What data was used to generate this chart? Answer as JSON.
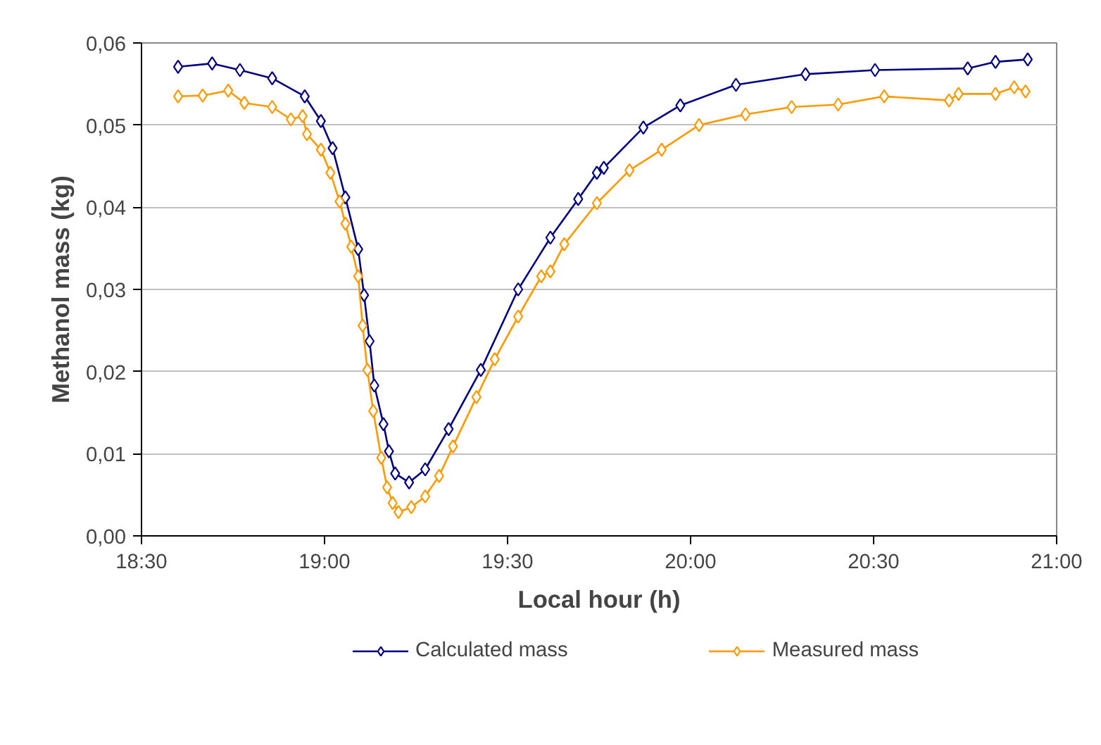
{
  "chart_data": {
    "type": "line",
    "xlabel": "Local hour (h)",
    "ylabel": "Methanol mass (kg)",
    "xlim": [
      18.5,
      21
    ],
    "xticks": [
      {
        "value": 18.5,
        "label": "18:30"
      },
      {
        "value": 19,
        "label": "19:00"
      },
      {
        "value": 19.5,
        "label": "19:30"
      },
      {
        "value": 20,
        "label": "20:00"
      },
      {
        "value": 20.5,
        "label": "20:30"
      },
      {
        "value": 21,
        "label": "21:00"
      }
    ],
    "ylim": [
      0,
      0.06
    ],
    "yticks": [
      {
        "value": 0,
        "label": "0,00"
      },
      {
        "value": 0.01,
        "label": "0,01"
      },
      {
        "value": 0.02,
        "label": "0,02"
      },
      {
        "value": 0.03,
        "label": "0,03"
      },
      {
        "value": 0.04,
        "label": "0,04"
      },
      {
        "value": 0.05,
        "label": "0,05"
      },
      {
        "value": 0.06,
        "label": "0,06"
      }
    ],
    "grid": "y",
    "legend": "bottom",
    "marker": "diamond",
    "line_style": "solid",
    "series": [
      {
        "name": "Calculated mass",
        "color": "#000080",
        "x": [
          18.6,
          18.693,
          18.769,
          18.857,
          18.946,
          18.99,
          19.022,
          19.057,
          19.092,
          19.108,
          19.123,
          19.136,
          19.161,
          19.176,
          19.193,
          19.231,
          19.275,
          19.339,
          19.427,
          19.529,
          19.617,
          19.693,
          19.744,
          19.763,
          19.871,
          19.972,
          20.124,
          20.314,
          20.504,
          20.757,
          20.833,
          20.921
        ],
        "values": [
          0.0571,
          0.0575,
          0.0567,
          0.0557,
          0.0535,
          0.0505,
          0.0472,
          0.0412,
          0.0349,
          0.0293,
          0.0237,
          0.0183,
          0.0136,
          0.0103,
          0.0076,
          0.0065,
          0.0081,
          0.013,
          0.0202,
          0.03,
          0.0363,
          0.041,
          0.0442,
          0.0448,
          0.0497,
          0.0524,
          0.0549,
          0.0562,
          0.0567,
          0.0569,
          0.0577,
          0.058
        ]
      },
      {
        "name": "Measured mass",
        "color": "#ff9900",
        "x": [
          18.6,
          18.667,
          18.737,
          18.781,
          18.857,
          18.908,
          18.94,
          18.952,
          18.99,
          19.016,
          19.041,
          19.057,
          19.073,
          19.092,
          19.104,
          19.117,
          19.133,
          19.155,
          19.171,
          19.186,
          19.202,
          19.237,
          19.275,
          19.313,
          19.351,
          19.415,
          19.465,
          19.529,
          19.592,
          19.617,
          19.655,
          19.744,
          19.833,
          19.921,
          20.023,
          20.15,
          20.276,
          20.403,
          20.529,
          20.706,
          20.732,
          20.833,
          20.884,
          20.915
        ],
        "values": [
          0.0535,
          0.0536,
          0.0542,
          0.0527,
          0.0522,
          0.0507,
          0.0511,
          0.0489,
          0.047,
          0.0442,
          0.0407,
          0.038,
          0.0352,
          0.0316,
          0.0256,
          0.0202,
          0.0152,
          0.0095,
          0.0059,
          0.004,
          0.0029,
          0.0035,
          0.0048,
          0.0073,
          0.0109,
          0.0169,
          0.0215,
          0.0267,
          0.0316,
          0.0322,
          0.0355,
          0.0405,
          0.0445,
          0.047,
          0.05,
          0.0513,
          0.0522,
          0.0525,
          0.0535,
          0.053,
          0.0538,
          0.0538,
          0.0546,
          0.0541
        ]
      }
    ]
  }
}
